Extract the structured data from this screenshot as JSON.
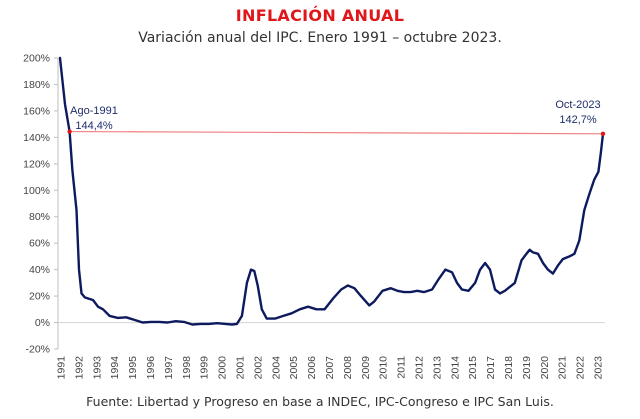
{
  "header": {
    "title": "INFLACIÓN ANUAL",
    "subtitle": "Variación anual del IPC. Enero 1991 – octubre 2023."
  },
  "footer": {
    "source": "Fuente: Libertad y Progreso en base a INDEC, IPC-Congreso e IPC San Luis."
  },
  "chart_data": {
    "type": "line",
    "title": "INFLACIÓN ANUAL",
    "subtitle": "Variación anual del IPC. Enero 1991 – octubre 2023.",
    "xlabel": "",
    "ylabel": "",
    "ylim": [
      -20,
      200
    ],
    "xlim": [
      1991,
      2023.83
    ],
    "grid": false,
    "yticks": [
      -20,
      0,
      20,
      40,
      60,
      80,
      100,
      120,
      140,
      160,
      180,
      200
    ],
    "ytick_labels": [
      "-20%",
      "0%",
      "20%",
      "40%",
      "60%",
      "80%",
      "100%",
      "120%",
      "140%",
      "160%",
      "180%",
      "200%"
    ],
    "xtick_labels": [
      "1991",
      "1992",
      "1993",
      "1994",
      "1995",
      "1996",
      "1997",
      "1998",
      "1999",
      "2000",
      "2001",
      "2002",
      "2004",
      "2005",
      "2006",
      "2007",
      "2008",
      "2009",
      "2010",
      "2011",
      "2012",
      "2013",
      "2014",
      "2015",
      "2017",
      "2018",
      "2019",
      "2020",
      "2021",
      "2022",
      "2023"
    ],
    "colors": {
      "line": "#0d1b5e",
      "reference": "#f08080",
      "marker": "#e0161b",
      "zero_line": "#d9d9d9"
    },
    "series": [
      {
        "name": "Inflación anual (%)",
        "x": [
          1991.0,
          1991.3,
          1991.58,
          1991.75,
          1992.0,
          1992.15,
          1992.3,
          1992.5,
          1993.0,
          1993.3,
          1993.6,
          1994.0,
          1994.5,
          1995.0,
          1995.5,
          1996.0,
          1996.5,
          1997.0,
          1997.5,
          1998.0,
          1998.5,
          1999.0,
          1999.5,
          2000.0,
          2000.5,
          2001.0,
          2001.4,
          2001.7,
          2002.0,
          2002.3,
          2002.55,
          2002.75,
          2002.95,
          2003.2,
          2003.5,
          2004.0,
          2004.5,
          2005.0,
          2005.5,
          2006.0,
          2006.5,
          2007.0,
          2007.5,
          2008.0,
          2008.4,
          2008.8,
          2009.2,
          2009.7,
          2010.0,
          2010.5,
          2011.0,
          2011.4,
          2011.8,
          2012.2,
          2012.6,
          2013.0,
          2013.5,
          2013.9,
          2014.3,
          2014.7,
          2015.0,
          2015.3,
          2015.7,
          2016.1,
          2016.4,
          2016.7,
          2017.0,
          2017.3,
          2017.6,
          2017.9,
          2018.2,
          2018.5,
          2018.9,
          2019.2,
          2019.4,
          2019.6,
          2019.9,
          2020.2,
          2020.5,
          2020.8,
          2021.1,
          2021.4,
          2021.8,
          2022.1,
          2022.4,
          2022.7,
          2023.0,
          2023.3,
          2023.55,
          2023.7,
          2023.83
        ],
        "values": [
          200,
          165,
          144.4,
          115,
          85,
          40,
          22,
          19,
          17,
          12,
          10,
          5,
          3.5,
          4,
          2,
          0,
          0.5,
          0.5,
          0,
          1,
          0.5,
          -1.5,
          -1,
          -1,
          -0.5,
          -1,
          -1.5,
          -1,
          5,
          30,
          40,
          39,
          28,
          10,
          3,
          3,
          5,
          7,
          10,
          12,
          10,
          10,
          18,
          25,
          28,
          26,
          20,
          13,
          16,
          24,
          26,
          24,
          23,
          23,
          24,
          23,
          25,
          33,
          40,
          38,
          30,
          25,
          24,
          30,
          40,
          45,
          40,
          25,
          22,
          24,
          27,
          30,
          47,
          52,
          55,
          53,
          52,
          45,
          40,
          37,
          43,
          48,
          50,
          52,
          62,
          85,
          97,
          108,
          114,
          128,
          142.7
        ]
      }
    ],
    "reference_line": {
      "value": 142.7,
      "label": "horizontal line from Ago-1991 to Oct-2023"
    },
    "annotations": [
      {
        "label": "Ago-1991",
        "value_label": "144,4%",
        "x": 1991.58,
        "y": 144.4
      },
      {
        "label": "Oct-2023",
        "value_label": "142,7%",
        "x": 2023.83,
        "y": 142.7
      }
    ]
  }
}
